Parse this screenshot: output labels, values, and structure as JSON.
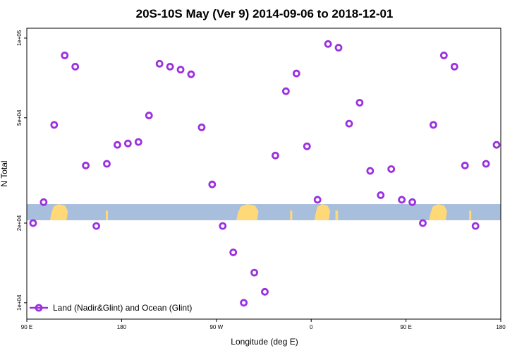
{
  "chart_data": {
    "type": "scatter",
    "title": "20S-10S May (Ver 9)   2014-09-06 to 2018-12-01",
    "xlabel": "Longitude (deg E)",
    "ylabel": "N Total",
    "x_scale": "linear",
    "y_scale": "log",
    "xlim": [
      90,
      540
    ],
    "ylim": [
      9000,
      105000
    ],
    "x_ticks": [
      {
        "value": 90,
        "label": "90 E"
      },
      {
        "value": 180,
        "label": "180"
      },
      {
        "value": 270,
        "label": "90 W"
      },
      {
        "value": 360,
        "label": "0"
      },
      {
        "value": 450,
        "label": "90 E"
      },
      {
        "value": 540,
        "label": "180"
      }
    ],
    "y_ticks": [
      {
        "value": 10000,
        "label": "1e+04"
      },
      {
        "value": 20000,
        "label": "2e+04"
      },
      {
        "value": 50000,
        "label": "5e+04"
      },
      {
        "value": 100000,
        "label": "1e+05"
      }
    ],
    "grid": false,
    "legend_position": "bottom-left",
    "land_band": {
      "y_low": 20500,
      "y_high": 23600,
      "ocean_color": "#a8bedd",
      "land_color": "#ffd878"
    },
    "series": [
      {
        "name": "Land (Nadir&Glint) and Ocean (Glint)",
        "color": "#9b30e0",
        "x": [
          96,
          106,
          116,
          126,
          136,
          146,
          156,
          166,
          176,
          186,
          196,
          206,
          216,
          226,
          236,
          246,
          256,
          266,
          276,
          286,
          296,
          306,
          316,
          326,
          336,
          346,
          356,
          366,
          376,
          386,
          396,
          406,
          416,
          426,
          436,
          446,
          456,
          466,
          476,
          486,
          496,
          506,
          516,
          526,
          536
        ],
        "y": [
          20000,
          24000,
          47000,
          86000,
          78000,
          33000,
          19500,
          33500,
          39500,
          40000,
          40500,
          51000,
          80000,
          78000,
          76000,
          73000,
          46000,
          28000,
          19500,
          15500,
          10000,
          13000,
          11000,
          36000,
          63000,
          73500,
          39000,
          24500,
          95000,
          92000,
          47500,
          57000,
          31500,
          25500,
          32000,
          24500,
          24000,
          20000,
          47000,
          86000,
          78000,
          33000,
          19500,
          33500,
          39500
        ]
      }
    ]
  }
}
